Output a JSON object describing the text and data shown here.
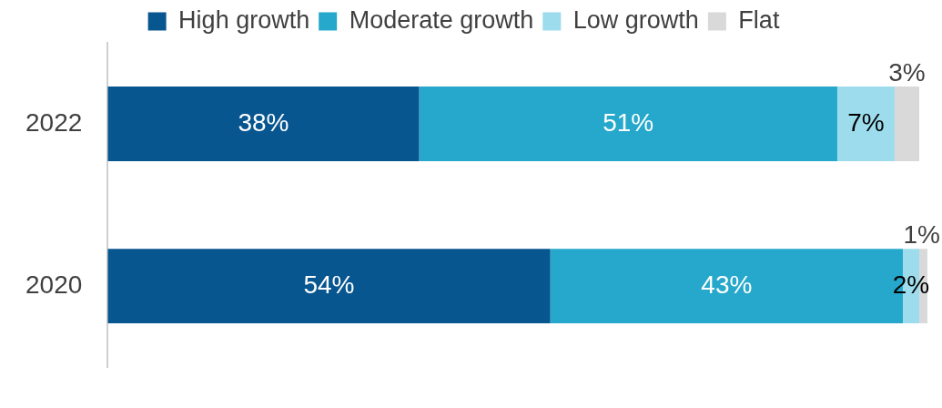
{
  "chart_data": {
    "type": "bar",
    "orientation": "horizontal",
    "stacked": true,
    "categories": [
      "2022",
      "2020"
    ],
    "series": [
      {
        "name": "High growth",
        "color": "#08568f",
        "values": [
          38,
          54
        ],
        "value_labels": [
          "38%",
          "54%"
        ]
      },
      {
        "name": "Moderate growth",
        "color": "#25a8cb",
        "values": [
          51,
          43
        ],
        "value_labels": [
          "51%",
          "43%"
        ]
      },
      {
        "name": "Low growth",
        "color": "#9ddcec",
        "values": [
          7,
          2
        ],
        "value_labels": [
          "7%",
          "2%"
        ]
      },
      {
        "name": "Flat",
        "color": "#d9d9d9",
        "values": [
          3,
          1
        ],
        "value_labels": [
          "3%",
          "1%"
        ]
      }
    ],
    "legend": "top",
    "grid": false
  }
}
